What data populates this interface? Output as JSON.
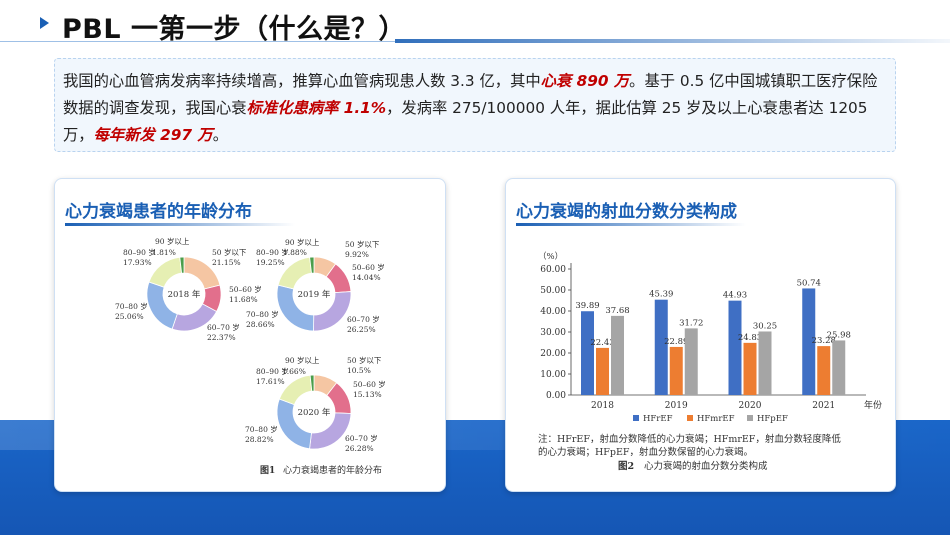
{
  "page": {
    "title": "PBL 一第一步（什么是？）"
  },
  "intro": {
    "part1": "我国的心血管病发病率持续增高，推算心血管病现患人数 3.3 亿，其中",
    "em1": "心衰 890 万",
    "part2": "。基于 0.5 亿中国城镇职工医疗保险数据的调查发现，我国心衰",
    "em2": "标准化患病率 1.1%",
    "part3": "，发病率 275/100000 人年，据此估算 25 岁及以上心衰患者达 1205 万，",
    "em3": "每年新发 297 万",
    "part4": "。"
  },
  "left_card": {
    "title": "心力衰竭患者的年龄分布",
    "figure_caption_num": "图1",
    "figure_caption": "心力衰竭患者的年龄分布",
    "colors": [
      "#f5c6a3",
      "#e26f8c",
      "#b7a6e0",
      "#8fb3e6",
      "#e6efb3",
      "#4b9e4b"
    ],
    "donuts": [
      {
        "center_label": "2018 年",
        "segments": [
          {
            "label": "50 岁以下",
            "pct": "21.15%",
            "value": 21.15
          },
          {
            "label": "50–60 岁",
            "pct": "11.68%",
            "value": 11.68
          },
          {
            "label": "60–70 岁",
            "pct": "22.37%",
            "value": 22.37
          },
          {
            "label": "70–80 岁",
            "pct": "25.06%",
            "value": 25.06
          },
          {
            "label": "80–90 岁",
            "pct": "17.93%",
            "value": 17.93
          },
          {
            "label": "90 岁以上",
            "pct": "1.81%",
            "value": 1.81
          }
        ]
      },
      {
        "center_label": "2019 年",
        "segments": [
          {
            "label": "50 岁以下",
            "pct": "9.92%",
            "value": 9.92
          },
          {
            "label": "50–60 岁",
            "pct": "14.04%",
            "value": 14.04
          },
          {
            "label": "60–70 岁",
            "pct": "26.25%",
            "value": 26.25
          },
          {
            "label": "70–80 岁",
            "pct": "28.66%",
            "value": 28.66
          },
          {
            "label": "80–90 岁",
            "pct": "19.25%",
            "value": 19.25
          },
          {
            "label": "90 岁以上",
            "pct": "1.88%",
            "value": 1.88
          }
        ]
      },
      {
        "center_label": "2020 年",
        "segments": [
          {
            "label": "50 岁以下",
            "pct": "10.5%",
            "value": 10.5
          },
          {
            "label": "50–60 岁",
            "pct": "15.13%",
            "value": 15.13
          },
          {
            "label": "60–70 岁",
            "pct": "26.28%",
            "value": 26.28
          },
          {
            "label": "70–80 岁",
            "pct": "28.82%",
            "value": 28.82
          },
          {
            "label": "80–90 岁",
            "pct": "17.61%",
            "value": 17.61
          },
          {
            "label": "90 岁以上",
            "pct": "1.66%",
            "value": 1.66
          }
        ]
      }
    ]
  },
  "right_card": {
    "title": "心力衰竭的射血分数分类构成",
    "note_line1": "注：HFrEF，射血分数降低的心力衰竭；HFmrEF，射血分数轻度降低",
    "note_line2": "的心力衰竭；HFpEF，射血分数保留的心力衰竭。",
    "figure_caption_num": "图2",
    "figure_caption": "心力衰竭的射血分数分类构成"
  },
  "chart_data": [
    {
      "type": "pie",
      "title": "2018 年",
      "categories": [
        "50 岁以下",
        "50–60 岁",
        "60–70 岁",
        "70–80 岁",
        "80–90 岁",
        "90 岁以上"
      ],
      "values": [
        21.15,
        11.68,
        22.37,
        25.06,
        17.93,
        1.81
      ]
    },
    {
      "type": "pie",
      "title": "2019 年",
      "categories": [
        "50 岁以下",
        "50–60 岁",
        "60–70 岁",
        "70–80 岁",
        "80–90 岁",
        "90 岁以上"
      ],
      "values": [
        9.92,
        14.04,
        26.25,
        28.66,
        19.25,
        1.88
      ]
    },
    {
      "type": "pie",
      "title": "2020 年",
      "categories": [
        "50 岁以下",
        "50–60 岁",
        "60–70 岁",
        "70–80 岁",
        "80–90 岁",
        "90 岁以上"
      ],
      "values": [
        10.5,
        15.13,
        26.28,
        28.82,
        17.61,
        1.66
      ]
    },
    {
      "type": "bar",
      "categories": [
        "2018",
        "2019",
        "2020",
        "2021"
      ],
      "series": [
        {
          "name": "HFrEF",
          "values": [
            39.89,
            45.39,
            44.93,
            50.74
          ],
          "color": "#3f6fc4"
        },
        {
          "name": "HFmrEF",
          "values": [
            22.43,
            22.89,
            24.83,
            23.28
          ],
          "color": "#ed7d31"
        },
        {
          "name": "HFpEF",
          "values": [
            37.68,
            31.72,
            30.25,
            25.98
          ],
          "color": "#a5a5a5"
        }
      ],
      "value_labels": [
        [
          "39.89",
          "45.39",
          "44.93",
          "50.74"
        ],
        [
          "22.43",
          "22.89",
          "24.83",
          "23.28"
        ],
        [
          "37.68",
          "31.72",
          "30.25",
          "25.98"
        ]
      ],
      "ylabel": "（%）",
      "xlabel": "年份",
      "ylim": [
        0,
        60
      ],
      "yticks": [
        "0.00",
        "10.00",
        "20.00",
        "30.00",
        "40.00",
        "50.00",
        "60.00"
      ],
      "legend": "bottom"
    }
  ]
}
